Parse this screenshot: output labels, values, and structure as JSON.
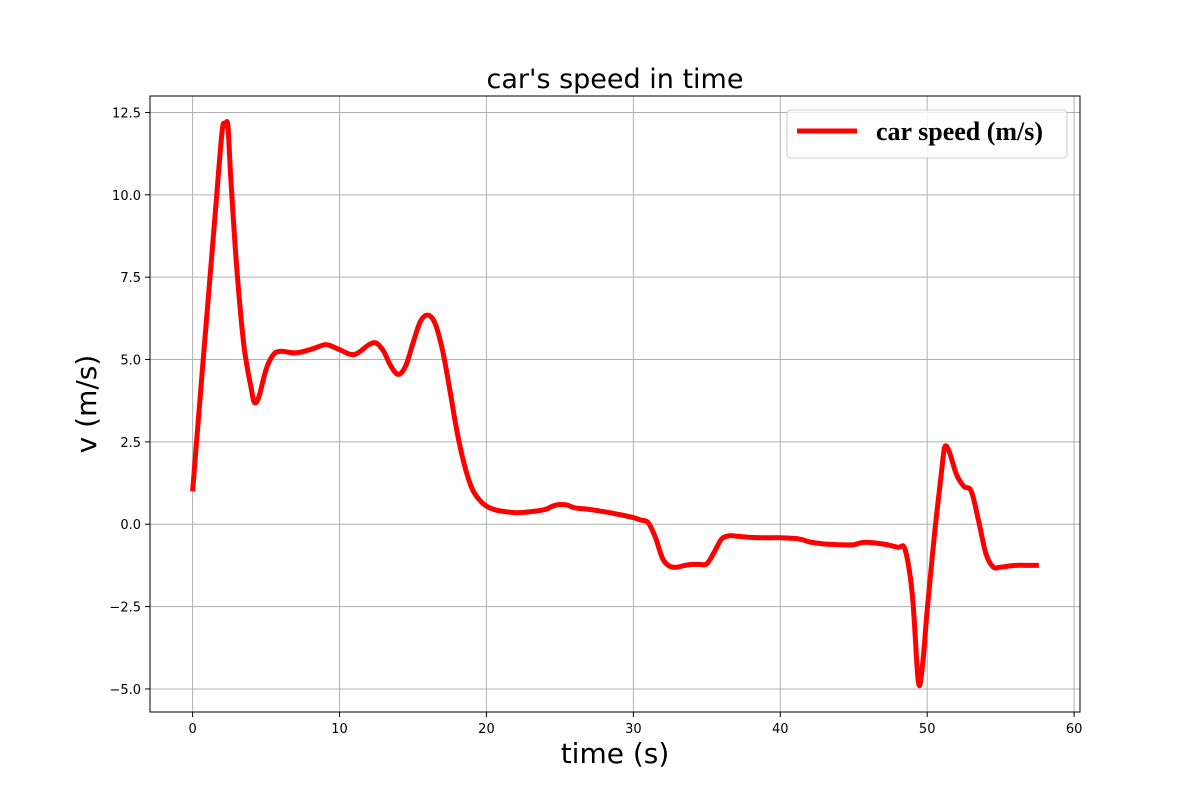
{
  "chart_data": {
    "type": "line",
    "title": "car's speed in time",
    "xlabel": "time (s)",
    "ylabel": "v (m/s)",
    "xlim": [
      -2.9,
      60.4
    ],
    "ylim": [
      -5.7,
      13.0
    ],
    "xticks": [
      0,
      10,
      20,
      30,
      40,
      50,
      60
    ],
    "xtick_labels": [
      "0",
      "10",
      "20",
      "30",
      "40",
      "50",
      "60"
    ],
    "yticks": [
      -5.0,
      -2.5,
      0.0,
      2.5,
      5.0,
      7.5,
      10.0,
      12.5
    ],
    "ytick_labels": [
      "−5.0",
      "−2.5",
      "0.0",
      "2.5",
      "5.0",
      "7.5",
      "10.0",
      "12.5"
    ],
    "grid": true,
    "legend_position": "top-right",
    "series": [
      {
        "name": "car speed (m/s)",
        "color": "#ff0000",
        "x": [
          0,
          0.5,
          1.0,
          1.5,
          2.0,
          2.2,
          2.4,
          2.6,
          3.0,
          3.5,
          4.0,
          4.2,
          4.5,
          5.0,
          5.5,
          6.0,
          7.0,
          8.0,
          9.0,
          9.5,
          10.0,
          11.0,
          12.0,
          12.5,
          13.0,
          13.5,
          14.0,
          14.5,
          15.0,
          15.5,
          16.0,
          16.5,
          17.0,
          17.5,
          18.0,
          18.5,
          19.0,
          19.5,
          20.0,
          20.5,
          21.0,
          22.0,
          23.0,
          24.0,
          24.5,
          25.0,
          25.5,
          26.0,
          27.0,
          28.0,
          29.0,
          30.0,
          30.5,
          31.0,
          31.5,
          32.0,
          32.5,
          33.0,
          33.5,
          34.0,
          34.5,
          35.0,
          35.5,
          36.0,
          36.5,
          37.0,
          38.0,
          39.0,
          40.0,
          41.0,
          41.5,
          42.0,
          43.0,
          44.0,
          45.0,
          45.5,
          46.0,
          47.0,
          48.0,
          48.5,
          49.0,
          49.4,
          49.7,
          50.0,
          50.5,
          51.0,
          51.2,
          51.5,
          52.0,
          52.5,
          53.0,
          53.5,
          54.0,
          54.5,
          55.0,
          56.0,
          57.0,
          57.6
        ],
        "y": [
          1.0,
          3.8,
          6.5,
          9.2,
          11.9,
          12.1,
          12.1,
          10.5,
          7.8,
          5.4,
          4.1,
          3.7,
          3.85,
          4.7,
          5.15,
          5.25,
          5.2,
          5.3,
          5.45,
          5.4,
          5.3,
          5.15,
          5.45,
          5.5,
          5.25,
          4.8,
          4.55,
          4.8,
          5.5,
          6.15,
          6.35,
          6.1,
          5.3,
          4.1,
          2.8,
          1.8,
          1.1,
          0.75,
          0.55,
          0.45,
          0.4,
          0.35,
          0.38,
          0.45,
          0.55,
          0.6,
          0.58,
          0.5,
          0.45,
          0.38,
          0.3,
          0.2,
          0.13,
          0.05,
          -0.4,
          -1.05,
          -1.28,
          -1.3,
          -1.25,
          -1.22,
          -1.22,
          -1.2,
          -0.85,
          -0.45,
          -0.35,
          -0.36,
          -0.4,
          -0.41,
          -0.41,
          -0.43,
          -0.47,
          -0.54,
          -0.6,
          -0.62,
          -0.62,
          -0.56,
          -0.55,
          -0.6,
          -0.7,
          -0.78,
          -2.2,
          -4.8,
          -4.2,
          -2.6,
          -0.3,
          1.7,
          2.35,
          2.2,
          1.5,
          1.15,
          1.0,
          0.1,
          -0.9,
          -1.3,
          -1.3,
          -1.25,
          -1.25,
          -1.25
        ]
      }
    ]
  }
}
